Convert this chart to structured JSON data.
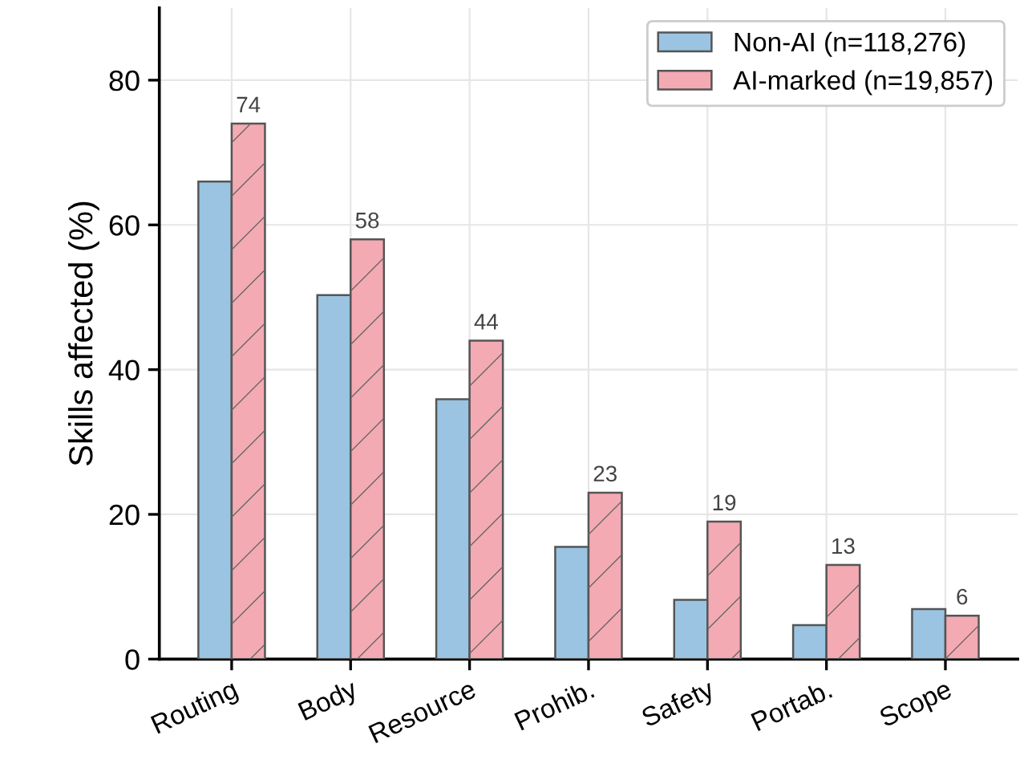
{
  "chart_data": {
    "type": "bar",
    "ylabel": "Skills affected (%)",
    "categories": [
      "Routing",
      "Body",
      "Resource",
      "Prohib.",
      "Safety",
      "Portab.",
      "Scope"
    ],
    "series": [
      {
        "name": "Non-AI (n=118,276)",
        "color": "#9ac4e2",
        "values": [
          66,
          50.3,
          35.9,
          15.5,
          8.2,
          4.7,
          6.9
        ]
      },
      {
        "name": "AI-marked (n=19,857)",
        "color": "#f4aab3",
        "values": [
          74,
          58,
          44,
          23,
          19,
          13,
          6
        ],
        "value_labels": [
          "74",
          "58",
          "44",
          "23",
          "19",
          "13",
          "6"
        ]
      }
    ],
    "ylim": [
      0,
      90
    ],
    "yticks": [
      0,
      20,
      40,
      60,
      80
    ],
    "grid": true,
    "legend": "top right"
  }
}
